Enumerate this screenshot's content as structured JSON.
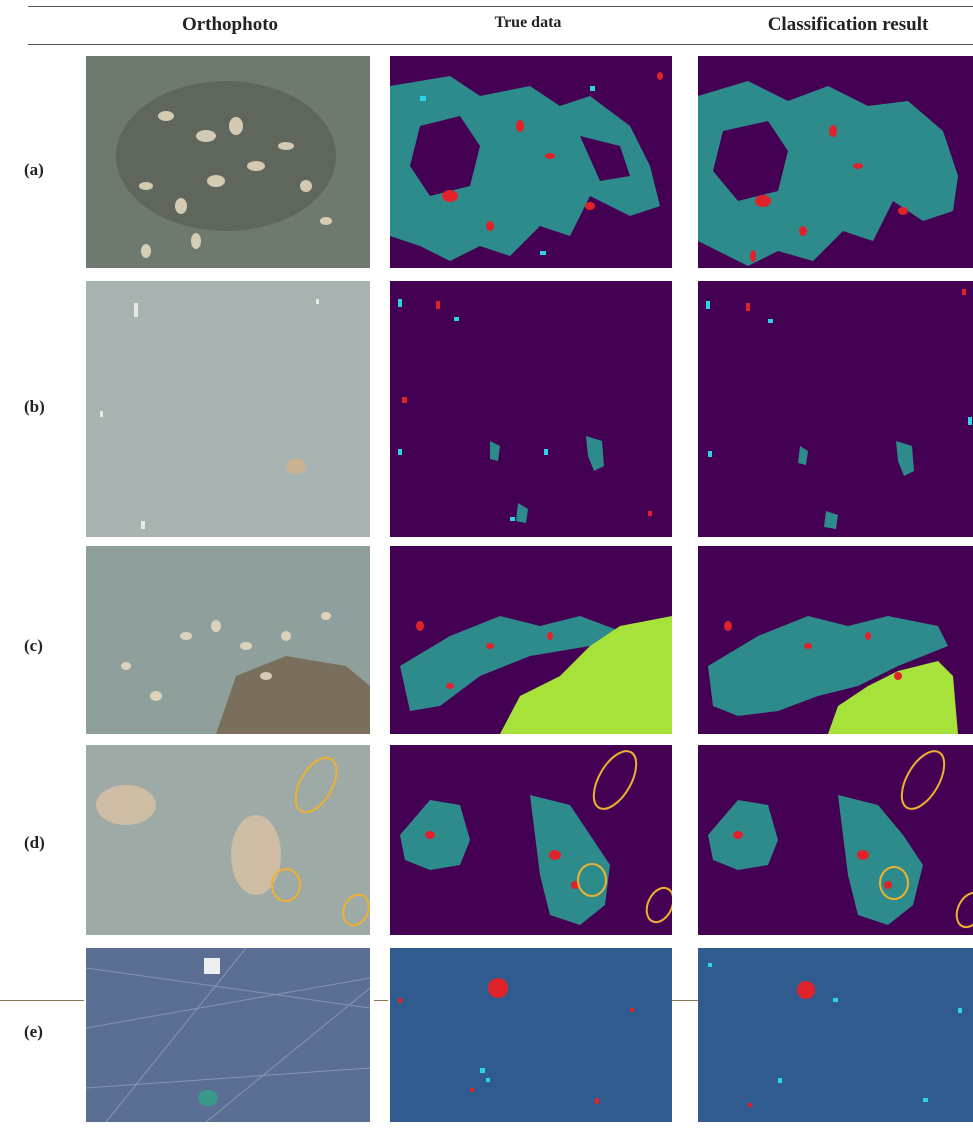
{
  "headers": {
    "orthophoto": "Orthophoto",
    "true_data": "True data",
    "classification": "Classification result"
  },
  "rows": [
    {
      "label": "(a)"
    },
    {
      "label": "(b)"
    },
    {
      "label": "(c)"
    },
    {
      "label": "(d)"
    },
    {
      "label": "(e)"
    }
  ],
  "colors": {
    "water_background": "#440154",
    "grass_background": "#2f5b8f",
    "litter_cluster": "#2e8b8c",
    "red_class": "#e0232a",
    "cyan_class": "#2fd3e8",
    "vegetation_class": "#a6e23a",
    "highlight_ellipse": "#f0b030"
  }
}
